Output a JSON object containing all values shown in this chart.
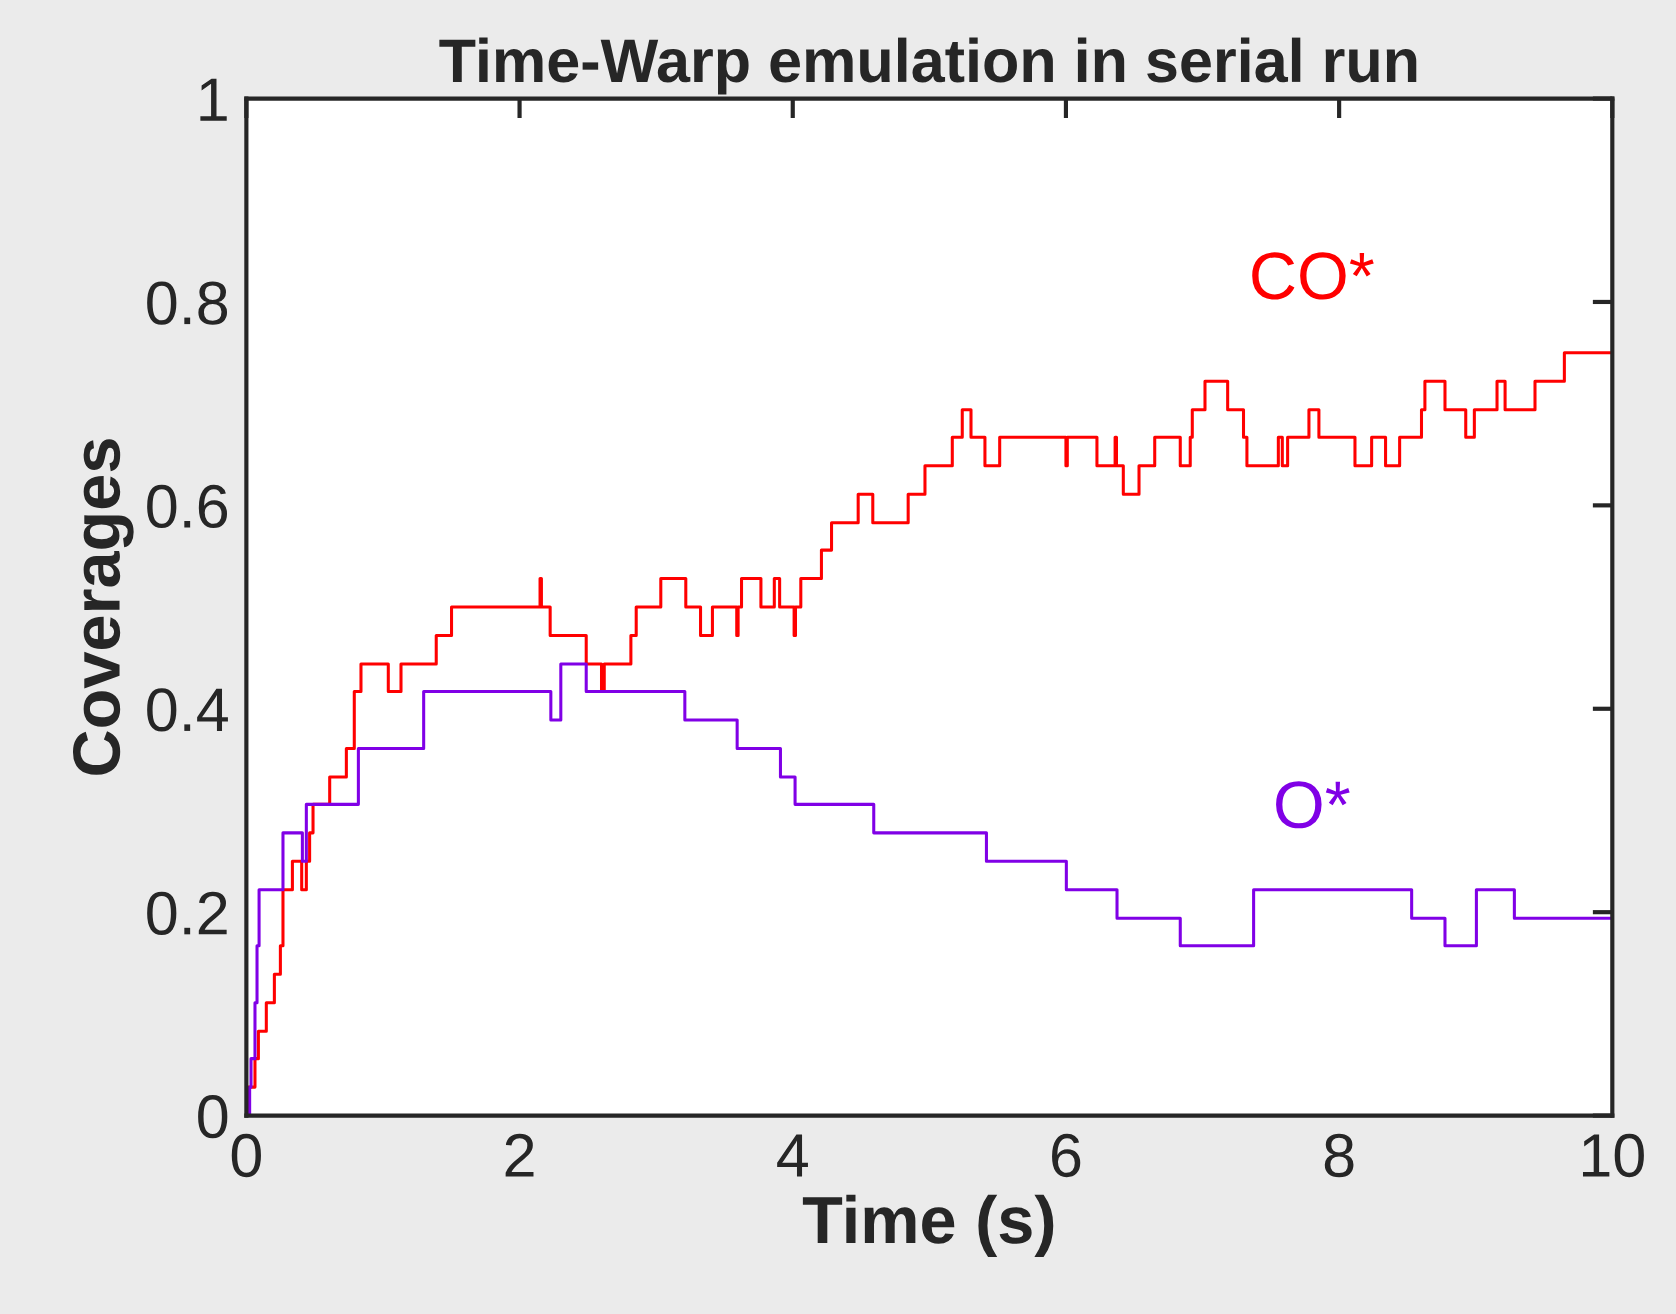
{
  "chart_data": {
    "type": "step",
    "title": "Time-Warp emulation in serial run",
    "xlabel": "Time (s)",
    "ylabel": "Coverages",
    "xlim": [
      0,
      10
    ],
    "xticks": [
      0,
      2,
      4,
      6,
      8,
      10
    ],
    "ylim": [
      0,
      1
    ],
    "yticks": [
      0,
      0.2,
      0.4,
      0.6,
      0.8,
      1
    ],
    "grid": false,
    "legend": false,
    "marker": "none",
    "line_style": "solid",
    "series": [
      {
        "name": "CO*",
        "color": "#ff0000",
        "x": [
          0,
          0.015,
          0.063,
          0.088,
          0.146,
          0.205,
          0.249,
          0.268,
          0.337,
          0.405,
          0.439,
          0.463,
          0.488,
          0.61,
          0.732,
          0.79,
          0.839,
          1.039,
          1.132,
          1.39,
          1.502,
          2.15,
          2.16,
          2.224,
          2.488,
          2.6,
          2.62,
          2.815,
          2.854,
          3.034,
          3.217,
          3.325,
          3.412,
          3.59,
          3.6,
          3.625,
          3.767,
          3.865,
          3.904,
          4.01,
          4.02,
          4.059,
          4.21,
          4.284,
          4.479,
          4.586,
          4.845,
          4.968,
          5.168,
          5.241,
          5.305,
          5.407,
          5.515,
          6.0,
          6.01,
          6.227,
          6.36,
          6.37,
          6.42,
          6.535,
          6.65,
          6.837,
          6.91,
          6.925,
          7.018,
          7.184,
          7.3,
          7.325,
          7.555,
          7.584,
          7.623,
          7.779,
          7.852,
          8.116,
          8.238,
          8.34,
          8.443,
          8.603,
          8.628,
          8.775,
          8.927,
          8.99,
          9.156,
          9.215,
          9.434,
          9.649,
          10
        ],
        "values": [
          0,
          0.028,
          0.056,
          0.083,
          0.111,
          0.139,
          0.167,
          0.222,
          0.25,
          0.222,
          0.25,
          0.278,
          0.306,
          0.333,
          0.361,
          0.417,
          0.444,
          0.417,
          0.444,
          0.472,
          0.5,
          0.528,
          0.5,
          0.472,
          0.444,
          0.417,
          0.444,
          0.472,
          0.5,
          0.528,
          0.5,
          0.472,
          0.5,
          0.472,
          0.5,
          0.528,
          0.5,
          0.528,
          0.5,
          0.472,
          0.5,
          0.528,
          0.556,
          0.583,
          0.611,
          0.583,
          0.611,
          0.639,
          0.667,
          0.694,
          0.667,
          0.639,
          0.667,
          0.639,
          0.667,
          0.639,
          0.667,
          0.639,
          0.611,
          0.639,
          0.667,
          0.639,
          0.667,
          0.694,
          0.722,
          0.694,
          0.667,
          0.639,
          0.667,
          0.639,
          0.667,
          0.694,
          0.667,
          0.639,
          0.667,
          0.639,
          0.667,
          0.694,
          0.722,
          0.694,
          0.667,
          0.694,
          0.722,
          0.694,
          0.722,
          0.75,
          0.75
        ]
      },
      {
        "name": "O*",
        "color": "#8000e6",
        "x": [
          0,
          0.024,
          0.034,
          0.063,
          0.078,
          0.093,
          0.268,
          0.41,
          0.439,
          0.82,
          1.298,
          2.229,
          2.302,
          2.488,
          3.21,
          3.593,
          3.91,
          4.017,
          4.593,
          5.418,
          6.003,
          6.374,
          6.837,
          7.374,
          8.531,
          8.775,
          9.005,
          9.283,
          10
        ],
        "values": [
          0,
          0.028,
          0.056,
          0.111,
          0.167,
          0.222,
          0.278,
          0.25,
          0.306,
          0.361,
          0.417,
          0.389,
          0.444,
          0.417,
          0.389,
          0.361,
          0.333,
          0.306,
          0.278,
          0.25,
          0.222,
          0.194,
          0.167,
          0.222,
          0.194,
          0.167,
          0.222,
          0.194,
          0.194
        ]
      }
    ]
  }
}
